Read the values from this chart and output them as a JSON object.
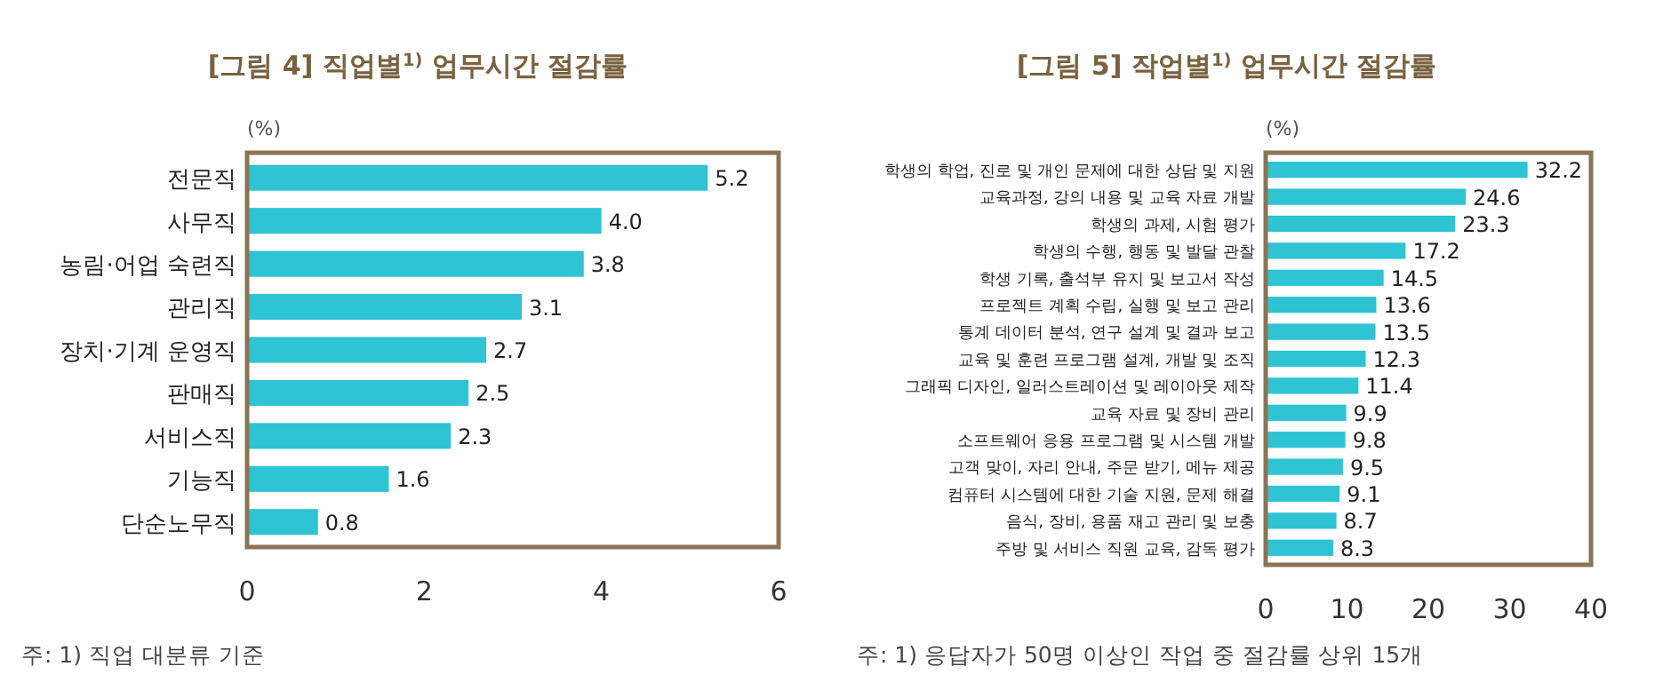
{
  "chart_data": [
    {
      "type": "bar",
      "orientation": "horizontal",
      "title": "[그림 4] 직업별$^{1)}$ 업무시간 절감률",
      "xlabel": "(%)",
      "categories": [
        "전문직",
        "사무직",
        "농림·어업 숙련직",
        "관리직",
        "장치·기계 운영직",
        "판매직",
        "서비스직",
        "기능직",
        "단순노무직"
      ],
      "values": [
        5.2,
        4.0,
        3.8,
        3.1,
        2.7,
        2.5,
        2.3,
        1.6,
        0.8
      ],
      "color": "#2ec4d3",
      "value_labels": [
        "5.2",
        "4.0",
        "3.8",
        "3.1",
        "2.7",
        "2.5",
        "2.3",
        "1.6",
        "0.8"
      ],
      "xlim": [
        0,
        6
      ],
      "xticks": [
        0,
        2,
        4,
        6
      ],
      "annotations": [
        "주: 1) 직업 대분류 기준"
      ]
    },
    {
      "type": "bar",
      "orientation": "horizontal",
      "title": "[그림 5] 작업별$^{1)}$ 업무시간 절감률",
      "xlabel": "(%)",
      "categories": [
        "학생의 학업, 진로 및 개인 문제에 대한 상담 및 지원",
        "교육과정, 강의 내용 및 교육 자료 개발",
        "학생의 과제, 시험 평가",
        "학생의 수행, 행동 및 발달 관찰",
        "학생 기록, 출석부 유지 및 보고서 작성",
        "프로젝트 계획 수립, 실행 및 보고 관리",
        "통계 데이터 분석, 연구 설계 및 결과 보고",
        "교육 및 훈련 프로그램 설계, 개발 및 조직",
        "그래픽 디자인, 일러스트레이션 및 레이아웃 제작",
        "교육 자료 및 장비 관리",
        "소프트웨어 응용 프로그램 및 시스템 개발",
        "고객 맞이, 자리 안내, 주문 받기, 메뉴 제공",
        "컴퓨터 시스템에 대한 기술 지원, 문제 해결",
        "음식, 장비, 용품 재고 관리 및 보충",
        "주방 및 서비스 직원 교육, 감독 평가"
      ],
      "values": [
        32.2,
        24.6,
        23.3,
        17.2,
        14.5,
        13.6,
        13.5,
        12.3,
        11.4,
        9.9,
        9.8,
        9.5,
        9.1,
        8.7,
        8.3
      ],
      "color": "#2ec4d3",
      "xlim": [
        0,
        40
      ],
      "xticks": [
        0,
        10,
        20,
        30,
        40
      ],
      "data_labels": true,
      "annotations": [
        "주: 1) 응답자가 50명 이상인 작업 중 절감률 상위 15개"
      ]
    }
  ]
}
